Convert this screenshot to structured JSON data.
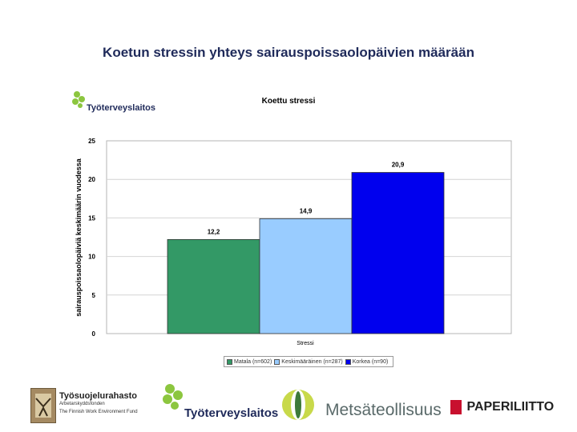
{
  "slide": {
    "title": "Koetun stressin yhteys sairauspoissaolopäivien määrään"
  },
  "header_logo": {
    "name": "Työterveyslaitos"
  },
  "chart_data": {
    "type": "bar",
    "title": "Koettu stressi",
    "xlabel": "Stressi",
    "ylabel": "sairauspoissaolopäiviä keskimäärin vuodessa",
    "ylim": [
      0,
      25
    ],
    "yticks": [
      0,
      5,
      10,
      15,
      20,
      25
    ],
    "grid": true,
    "legend_position": "bottom",
    "series": [
      {
        "name": "Matala (n=602)",
        "value": 12.2,
        "label": "12,2",
        "color": "#339966"
      },
      {
        "name": "Keskimääräinen (n=287)",
        "value": 14.9,
        "label": "14,9",
        "color": "#99ccff"
      },
      {
        "name": "Korkea (n=90)",
        "value": 20.9,
        "label": "20,9",
        "color": "#0000ee"
      }
    ]
  },
  "footer": {
    "tsr_name": "Työsuojelurahasto",
    "tsr_sub1": "Arbetarskyddsfonden",
    "tsr_sub2": "The Finnish Work Environment Fund",
    "ttl_name": "Työterveyslaitos",
    "metsa_name": "Metsäteollisuus",
    "paperi_name": "PAPERILIITTO"
  }
}
